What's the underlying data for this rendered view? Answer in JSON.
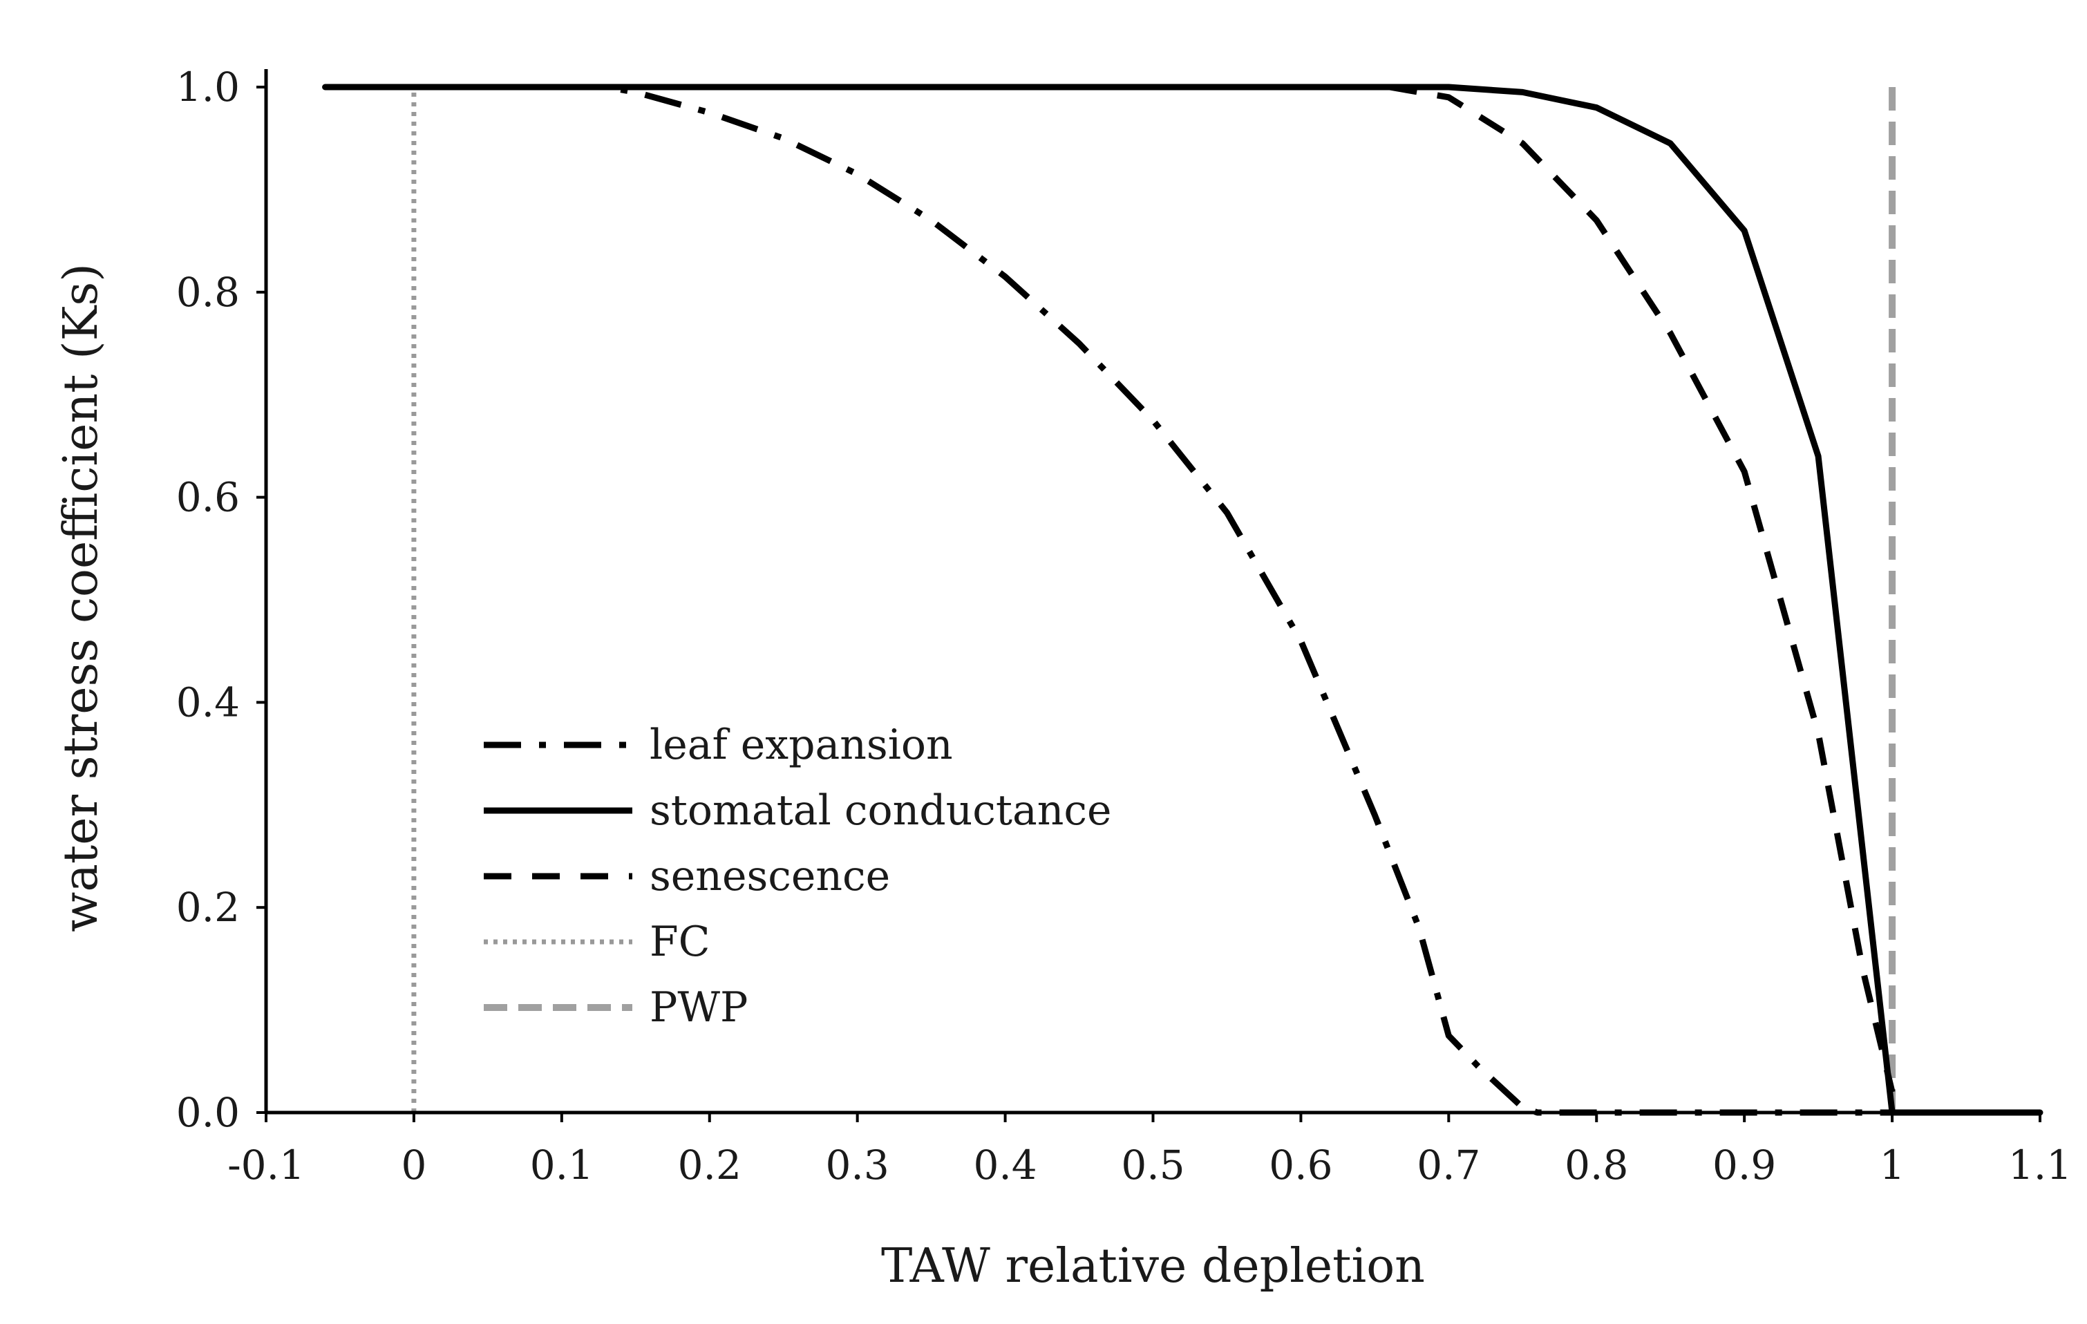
{
  "chart_data": {
    "type": "line",
    "title": "",
    "xlabel": "TAW relative depletion",
    "ylabel": "water stress coefficient (Ks)",
    "xlim": [
      -0.1,
      1.1
    ],
    "ylim": [
      0,
      1.0
    ],
    "x_ticks": [
      -0.1,
      0,
      0.1,
      0.2,
      0.3,
      0.4,
      0.5,
      0.6,
      0.7,
      0.8,
      0.9,
      1,
      1.1
    ],
    "x_tick_labels": [
      "-0.1",
      "0",
      "0.1",
      "0.2",
      "0.3",
      "0.4",
      "0.5",
      "0.6",
      "0.7",
      "0.8",
      "0.9",
      "1",
      "1.1"
    ],
    "y_ticks": [
      0,
      0.2,
      0.4,
      0.6,
      0.8,
      1.0
    ],
    "y_tick_labels": [
      "0.0",
      "0.2",
      "0.4",
      "0.6",
      "0.8",
      "1.0"
    ],
    "grid": false,
    "legend_position": "bottom-left",
    "series": [
      {
        "name": "leaf expansion",
        "color": "#000000",
        "style": "dashdot",
        "x": [
          -0.06,
          0.0,
          0.13,
          0.15,
          0.2,
          0.25,
          0.3,
          0.35,
          0.4,
          0.45,
          0.5,
          0.55,
          0.6,
          0.65,
          0.68,
          0.7,
          0.72,
          0.75,
          0.76,
          0.8,
          0.9,
          1.0
        ],
        "y": [
          1.0,
          1.0,
          1.0,
          0.995,
          0.975,
          0.95,
          0.915,
          0.87,
          0.815,
          0.75,
          0.675,
          0.585,
          0.46,
          0.29,
          0.18,
          0.075,
          0.045,
          0.005,
          0.0,
          0.0,
          0.0,
          0.0
        ]
      },
      {
        "name": "stomatal conductance",
        "color": "#000000",
        "style": "solid",
        "x": [
          -0.06,
          0.0,
          0.2,
          0.4,
          0.6,
          0.66,
          0.7,
          0.75,
          0.8,
          0.85,
          0.9,
          0.95,
          1.0,
          1.1
        ],
        "y": [
          1.0,
          1.0,
          1.0,
          1.0,
          1.0,
          1.0,
          1.0,
          0.995,
          0.98,
          0.945,
          0.86,
          0.64,
          0.0,
          0.0
        ]
      },
      {
        "name": "senescence",
        "color": "#000000",
        "style": "dashed",
        "x": [
          0.66,
          0.7,
          0.75,
          0.8,
          0.85,
          0.9,
          0.95,
          0.98,
          1.0
        ],
        "y": [
          1.0,
          0.99,
          0.945,
          0.87,
          0.76,
          0.625,
          0.37,
          0.14,
          0.02
        ]
      },
      {
        "name": "FC",
        "color": "#999999",
        "style": "dotted",
        "x": [
          0,
          0
        ],
        "y": [
          0,
          1.0
        ]
      },
      {
        "name": "PWP",
        "color": "#a0a0a0",
        "style": "dashed",
        "x": [
          1,
          1
        ],
        "y": [
          0,
          1.0
        ]
      }
    ]
  }
}
